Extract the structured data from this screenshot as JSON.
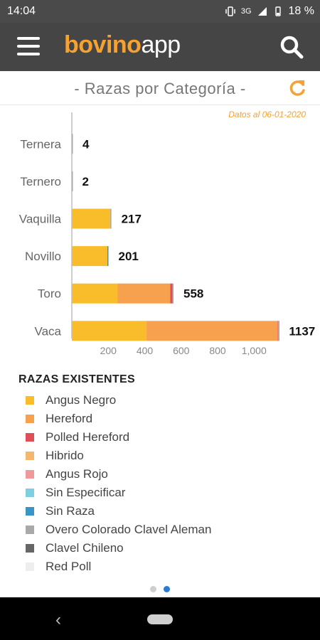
{
  "status_bar": {
    "time": "14:04",
    "network": "3G",
    "battery": "18 %"
  },
  "header": {
    "brand_part1": "bovino",
    "brand_part2": "app"
  },
  "subtitle": "- Razas por Categoría -",
  "date_note": "Datos al 06-01-2020",
  "chart_data": {
    "type": "bar",
    "orientation": "horizontal",
    "stacked": true,
    "categories": [
      "Ternera",
      "Ternero",
      "Vaquilla",
      "Novillo",
      "Toro",
      "Vaca"
    ],
    "totals": [
      4,
      2,
      217,
      201,
      558,
      1137
    ],
    "series": [
      {
        "name": "Angus Negro",
        "color": "#f9bd2b",
        "values": [
          0,
          0,
          210,
          195,
          250,
          410
        ]
      },
      {
        "name": "Hereford",
        "color": "#f7a04e",
        "values": [
          0,
          0,
          0,
          0,
          290,
          720
        ]
      },
      {
        "name": "Polled Hereford",
        "color": "#e24d5a",
        "values": [
          0,
          0,
          0,
          0,
          12,
          2
        ]
      },
      {
        "name": "Hibrido",
        "color": "#f5b66e",
        "values": [
          0,
          0,
          0,
          0,
          0,
          0
        ]
      },
      {
        "name": "Angus Rojo",
        "color": "#ef9a9a",
        "values": [
          0,
          0,
          0,
          0,
          0,
          2
        ]
      },
      {
        "name": "Sin Especificar",
        "color": "#7fcfe0",
        "values": [
          0,
          0,
          0,
          0,
          0,
          0
        ]
      },
      {
        "name": "Sin Raza",
        "color": "#3a94c6",
        "values": [
          0,
          0,
          0,
          6,
          0,
          0
        ]
      },
      {
        "name": "Overo Colorado Clavel Aleman",
        "color": "#a9a9a9",
        "values": [
          4,
          2,
          7,
          0,
          6,
          3
        ]
      },
      {
        "name": "Clavel Chileno",
        "color": "#666666",
        "values": [
          0,
          0,
          0,
          0,
          0,
          0
        ]
      },
      {
        "name": "Red Poll",
        "color": "#eeeeee",
        "values": [
          0,
          0,
          0,
          0,
          0,
          0
        ]
      }
    ],
    "xticks": [
      "200",
      "400",
      "600",
      "800",
      "1,000"
    ],
    "xlim": [
      0,
      1150
    ],
    "grid": false
  },
  "legend": {
    "title": "RAZAS EXISTENTES",
    "items": [
      {
        "label": "Angus Negro",
        "color": "#f9bd2b"
      },
      {
        "label": "Hereford",
        "color": "#f7a04e"
      },
      {
        "label": "Polled Hereford",
        "color": "#e24d5a"
      },
      {
        "label": "Hibrido",
        "color": "#f5b66e"
      },
      {
        "label": "Angus Rojo",
        "color": "#ef9a9a"
      },
      {
        "label": "Sin Especificar",
        "color": "#7fcfe0"
      },
      {
        "label": "Sin Raza",
        "color": "#3a94c6"
      },
      {
        "label": "Overo Colorado Clavel Aleman",
        "color": "#a9a9a9"
      },
      {
        "label": "Clavel Chileno",
        "color": "#666666"
      },
      {
        "label": "Red Poll",
        "color": "#eeeeee"
      }
    ]
  },
  "pager": {
    "count": 2,
    "active": 1
  }
}
